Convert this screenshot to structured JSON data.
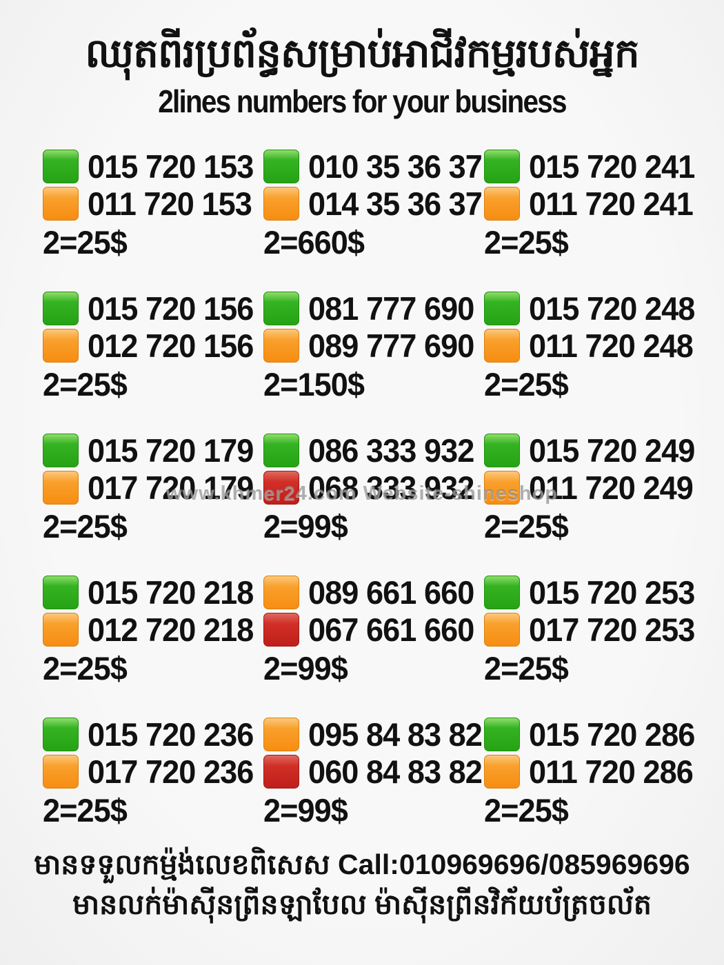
{
  "header": {
    "title_khmer": "ឈុតពីរប្រព័ន្ធសម្រាប់អាជីវកម្មរបស់អ្នក",
    "title_english": "2lines numbers for your business"
  },
  "watermark": "www.khmer24.com Website-shineshop",
  "chip_colors": {
    "green": "#2aa815",
    "orange": "#f8941e",
    "red": "#c8241f"
  },
  "cards": [
    {
      "lines": [
        {
          "color": "green",
          "number": "015 720 153"
        },
        {
          "color": "orange",
          "number": "011 720 153"
        }
      ],
      "price": "2=25$"
    },
    {
      "lines": [
        {
          "color": "green",
          "number": "010 35 36 37"
        },
        {
          "color": "orange",
          "number": "014 35 36 37"
        }
      ],
      "price": "2=660$"
    },
    {
      "lines": [
        {
          "color": "green",
          "number": "015 720 241"
        },
        {
          "color": "orange",
          "number": "011 720 241"
        }
      ],
      "price": "2=25$"
    },
    {
      "lines": [
        {
          "color": "green",
          "number": "015 720 156"
        },
        {
          "color": "orange",
          "number": "012 720 156"
        }
      ],
      "price": "2=25$"
    },
    {
      "lines": [
        {
          "color": "green",
          "number": "081 777 690"
        },
        {
          "color": "orange",
          "number": "089 777 690"
        }
      ],
      "price": "2=150$"
    },
    {
      "lines": [
        {
          "color": "green",
          "number": "015 720 248"
        },
        {
          "color": "orange",
          "number": "011 720 248"
        }
      ],
      "price": "2=25$"
    },
    {
      "lines": [
        {
          "color": "green",
          "number": "015 720 179"
        },
        {
          "color": "orange",
          "number": "017 720 179"
        }
      ],
      "price": "2=25$"
    },
    {
      "lines": [
        {
          "color": "green",
          "number": "086 333 932"
        },
        {
          "color": "red",
          "number": "068 333 932"
        }
      ],
      "price": "2=99$"
    },
    {
      "lines": [
        {
          "color": "green",
          "number": "015 720 249"
        },
        {
          "color": "orange",
          "number": "011 720 249"
        }
      ],
      "price": "2=25$"
    },
    {
      "lines": [
        {
          "color": "green",
          "number": "015 720 218"
        },
        {
          "color": "orange",
          "number": "012 720 218"
        }
      ],
      "price": "2=25$"
    },
    {
      "lines": [
        {
          "color": "orange",
          "number": "089 661 660"
        },
        {
          "color": "red",
          "number": "067 661 660"
        }
      ],
      "price": "2=99$"
    },
    {
      "lines": [
        {
          "color": "green",
          "number": "015 720 253"
        },
        {
          "color": "orange",
          "number": "017 720 253"
        }
      ],
      "price": "2=25$"
    },
    {
      "lines": [
        {
          "color": "green",
          "number": "015 720 236"
        },
        {
          "color": "orange",
          "number": "017 720 236"
        }
      ],
      "price": "2=25$"
    },
    {
      "lines": [
        {
          "color": "orange",
          "number": "095 84 83 82"
        },
        {
          "color": "red",
          "number": "060 84 83 82"
        }
      ],
      "price": "2=99$"
    },
    {
      "lines": [
        {
          "color": "green",
          "number": "015 720 286"
        },
        {
          "color": "orange",
          "number": "011 720 286"
        }
      ],
      "price": "2=25$"
    }
  ],
  "footer": {
    "line1": "មានទទួលកម្ម៉ង់លេខពិសេស Call:010969696/085969696",
    "line2": "មានលក់ម៉ាស៊ីនព្រីនឡាបែល ម៉ាស៊ីនព្រីនវិក័យប័ត្រចល័ត"
  }
}
